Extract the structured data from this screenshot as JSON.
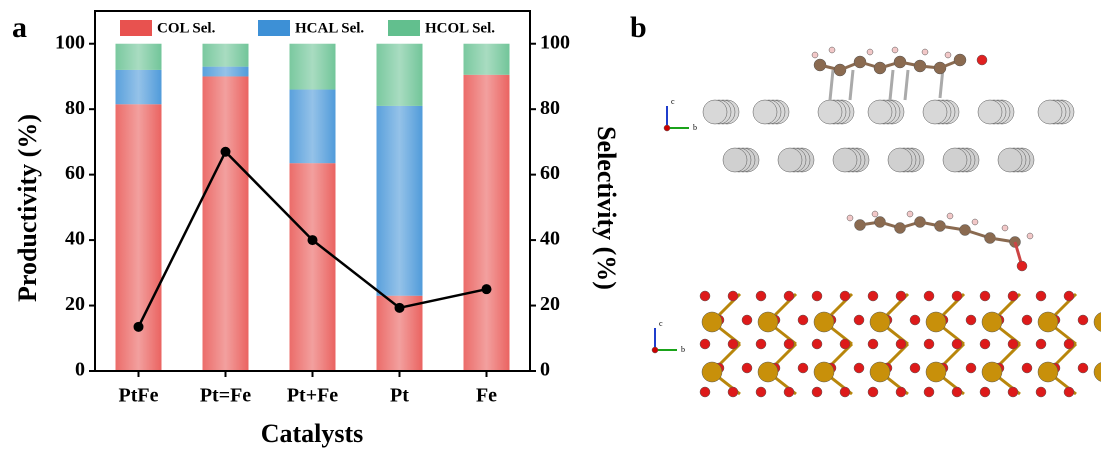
{
  "chart_data": {
    "type": "bar",
    "stacked": true,
    "panel_label": "a",
    "categories": [
      "PtFe",
      "Pt=Fe",
      "Pt+Fe",
      "Pt",
      "Fe"
    ],
    "series": [
      {
        "name": "COL Sel.",
        "color": "#e8524f",
        "axis": "y2",
        "values": [
          81.5,
          90,
          63.5,
          23,
          90.5
        ]
      },
      {
        "name": "HCAL Sel.",
        "color": "#3d90d6",
        "axis": "y2",
        "values": [
          10.5,
          3,
          22.5,
          58,
          0
        ]
      },
      {
        "name": "HCOL Sel.",
        "color": "#62bf8e",
        "axis": "y2",
        "values": [
          8,
          7,
          14,
          19,
          9.5
        ]
      }
    ],
    "line": {
      "type": "line",
      "color": "#000000",
      "values": [
        13.5,
        67,
        40,
        19.3,
        25
      ]
    },
    "xlabel": "Catalysts",
    "ylabel": "Productivity (%)",
    "y2label": "Selectivity (%)",
    "ylim": [
      0,
      110
    ],
    "yticks": [
      0,
      20,
      40,
      60,
      80,
      100
    ],
    "y2lim": [
      0,
      110
    ],
    "y2ticks": [
      0,
      20,
      40,
      60,
      80,
      100
    ],
    "legend": "top"
  },
  "panel_b": {
    "label": "b",
    "axes": [
      {
        "up": "c",
        "right": "b"
      },
      {
        "up": "c",
        "right": "b"
      }
    ]
  }
}
